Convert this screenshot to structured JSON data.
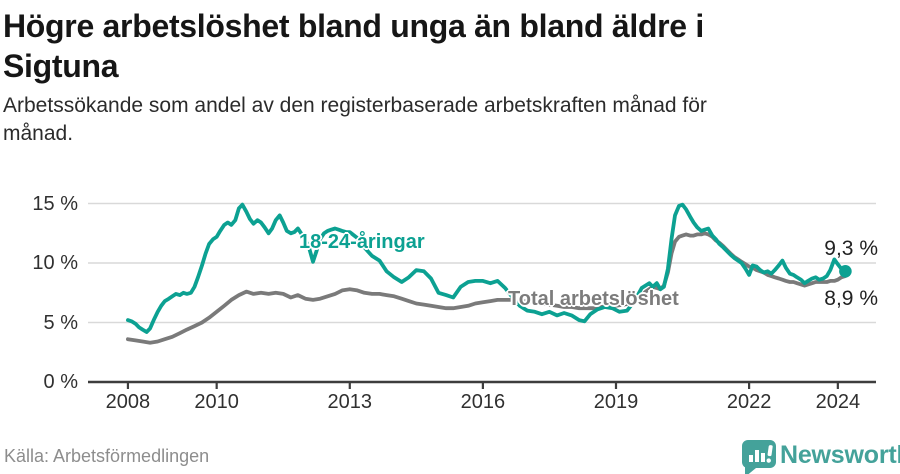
{
  "header": {
    "title_lines": [
      "Högre arbetslöshet bland unga än bland äldre i",
      "Sigtuna"
    ],
    "subtitle_lines": [
      "Arbetssökande som andel av den registerbaserade arbetskraften månad för",
      "månad."
    ]
  },
  "chart_data": {
    "type": "line",
    "title": "Högre arbetslöshet bland unga än bland äldre i Sigtuna",
    "subtitle": "Arbetssökande som andel av den registerbaserade arbetskraften månad för månad.",
    "x_unit": "decimal_year",
    "xlim": [
      2007.1,
      2024.86
    ],
    "ylim": [
      0,
      15
    ],
    "grid": "horizontal",
    "xticks": [
      2008,
      2010,
      2013,
      2016,
      2019,
      2022,
      2024
    ],
    "xtick_labels": [
      "2008",
      "2010",
      "2013",
      "2016",
      "2019",
      "2022",
      "2024"
    ],
    "yticks": [
      0,
      5,
      10,
      15
    ],
    "ytick_labels": [
      "0 %",
      "5 %",
      "10 %",
      "15 %"
    ],
    "series": [
      {
        "name": "Total arbetslöshet",
        "color": "#7a7a7a",
        "end_dot": false,
        "points": [
          [
            2008.0,
            3.6
          ],
          [
            2008.17,
            3.5
          ],
          [
            2008.33,
            3.4
          ],
          [
            2008.5,
            3.3
          ],
          [
            2008.67,
            3.4
          ],
          [
            2008.83,
            3.6
          ],
          [
            2009.0,
            3.8
          ],
          [
            2009.17,
            4.1
          ],
          [
            2009.33,
            4.4
          ],
          [
            2009.5,
            4.7
          ],
          [
            2009.67,
            5.0
          ],
          [
            2009.83,
            5.4
          ],
          [
            2010.0,
            5.9
          ],
          [
            2010.17,
            6.4
          ],
          [
            2010.33,
            6.9
          ],
          [
            2010.5,
            7.3
          ],
          [
            2010.67,
            7.6
          ],
          [
            2010.83,
            7.4
          ],
          [
            2011.0,
            7.5
          ],
          [
            2011.17,
            7.4
          ],
          [
            2011.33,
            7.5
          ],
          [
            2011.5,
            7.4
          ],
          [
            2011.67,
            7.1
          ],
          [
            2011.83,
            7.3
          ],
          [
            2012.0,
            7.0
          ],
          [
            2012.17,
            6.9
          ],
          [
            2012.33,
            7.0
          ],
          [
            2012.5,
            7.2
          ],
          [
            2012.67,
            7.4
          ],
          [
            2012.83,
            7.7
          ],
          [
            2013.0,
            7.8
          ],
          [
            2013.17,
            7.7
          ],
          [
            2013.33,
            7.5
          ],
          [
            2013.5,
            7.4
          ],
          [
            2013.67,
            7.4
          ],
          [
            2013.83,
            7.3
          ],
          [
            2014.0,
            7.2
          ],
          [
            2014.17,
            7.0
          ],
          [
            2014.33,
            6.8
          ],
          [
            2014.5,
            6.6
          ],
          [
            2014.67,
            6.5
          ],
          [
            2014.83,
            6.4
          ],
          [
            2015.0,
            6.3
          ],
          [
            2015.17,
            6.2
          ],
          [
            2015.33,
            6.2
          ],
          [
            2015.5,
            6.3
          ],
          [
            2015.67,
            6.4
          ],
          [
            2015.83,
            6.6
          ],
          [
            2016.0,
            6.7
          ],
          [
            2016.17,
            6.8
          ],
          [
            2016.33,
            6.9
          ],
          [
            2016.5,
            6.9
          ],
          [
            2016.67,
            6.9
          ],
          [
            2016.83,
            6.8
          ],
          [
            2017.0,
            6.8
          ],
          [
            2017.17,
            6.7
          ],
          [
            2017.33,
            6.6
          ],
          [
            2017.5,
            6.5
          ],
          [
            2017.67,
            6.4
          ],
          [
            2017.83,
            6.3
          ],
          [
            2018.0,
            6.3
          ],
          [
            2018.17,
            6.2
          ],
          [
            2018.33,
            6.2
          ],
          [
            2018.5,
            6.2
          ],
          [
            2018.67,
            6.3
          ],
          [
            2018.83,
            6.4
          ],
          [
            2019.0,
            6.4
          ],
          [
            2019.17,
            6.5
          ],
          [
            2019.33,
            6.6
          ],
          [
            2019.5,
            7.0
          ],
          [
            2019.67,
            7.6
          ],
          [
            2019.83,
            8.0
          ],
          [
            2019.92,
            7.9
          ],
          [
            2020.0,
            7.8
          ],
          [
            2020.08,
            8.1
          ],
          [
            2020.17,
            9.2
          ],
          [
            2020.25,
            10.8
          ],
          [
            2020.33,
            11.8
          ],
          [
            2020.42,
            12.2
          ],
          [
            2020.5,
            12.3
          ],
          [
            2020.58,
            12.4
          ],
          [
            2020.67,
            12.3
          ],
          [
            2020.75,
            12.3
          ],
          [
            2020.83,
            12.4
          ],
          [
            2020.92,
            12.4
          ],
          [
            2021.0,
            12.5
          ],
          [
            2021.08,
            12.4
          ],
          [
            2021.17,
            12.2
          ],
          [
            2021.25,
            11.9
          ],
          [
            2021.33,
            11.7
          ],
          [
            2021.42,
            11.4
          ],
          [
            2021.5,
            11.1
          ],
          [
            2021.58,
            10.8
          ],
          [
            2021.67,
            10.5
          ],
          [
            2021.75,
            10.3
          ],
          [
            2021.83,
            10.1
          ],
          [
            2021.92,
            9.9
          ],
          [
            2022.0,
            9.7
          ],
          [
            2022.08,
            9.6
          ],
          [
            2022.17,
            9.4
          ],
          [
            2022.25,
            9.3
          ],
          [
            2022.33,
            9.2
          ],
          [
            2022.42,
            9.0
          ],
          [
            2022.5,
            8.9
          ],
          [
            2022.58,
            8.8
          ],
          [
            2022.67,
            8.7
          ],
          [
            2022.75,
            8.6
          ],
          [
            2022.83,
            8.5
          ],
          [
            2022.92,
            8.4
          ],
          [
            2023.0,
            8.4
          ],
          [
            2023.08,
            8.3
          ],
          [
            2023.17,
            8.2
          ],
          [
            2023.25,
            8.1
          ],
          [
            2023.33,
            8.2
          ],
          [
            2023.42,
            8.3
          ],
          [
            2023.5,
            8.4
          ],
          [
            2023.58,
            8.4
          ],
          [
            2023.67,
            8.4
          ],
          [
            2023.75,
            8.4
          ],
          [
            2023.83,
            8.5
          ],
          [
            2023.92,
            8.5
          ],
          [
            2024.0,
            8.6
          ],
          [
            2024.08,
            8.8
          ],
          [
            2024.17,
            8.9
          ]
        ]
      },
      {
        "name": "18-24-åringar",
        "color": "#0ca192",
        "end_dot": true,
        "points": [
          [
            2008.0,
            5.2
          ],
          [
            2008.08,
            5.1
          ],
          [
            2008.17,
            4.9
          ],
          [
            2008.25,
            4.6
          ],
          [
            2008.33,
            4.4
          ],
          [
            2008.42,
            4.2
          ],
          [
            2008.5,
            4.5
          ],
          [
            2008.58,
            5.2
          ],
          [
            2008.67,
            5.9
          ],
          [
            2008.75,
            6.4
          ],
          [
            2008.83,
            6.8
          ],
          [
            2008.92,
            7.0
          ],
          [
            2009.0,
            7.2
          ],
          [
            2009.08,
            7.4
          ],
          [
            2009.17,
            7.3
          ],
          [
            2009.25,
            7.5
          ],
          [
            2009.33,
            7.4
          ],
          [
            2009.42,
            7.5
          ],
          [
            2009.5,
            8.0
          ],
          [
            2009.58,
            8.8
          ],
          [
            2009.67,
            9.8
          ],
          [
            2009.75,
            10.8
          ],
          [
            2009.83,
            11.6
          ],
          [
            2009.92,
            12.0
          ],
          [
            2010.0,
            12.2
          ],
          [
            2010.08,
            12.7
          ],
          [
            2010.17,
            13.2
          ],
          [
            2010.25,
            13.4
          ],
          [
            2010.33,
            13.2
          ],
          [
            2010.42,
            13.6
          ],
          [
            2010.5,
            14.6
          ],
          [
            2010.58,
            14.9
          ],
          [
            2010.67,
            14.3
          ],
          [
            2010.75,
            13.7
          ],
          [
            2010.83,
            13.3
          ],
          [
            2010.92,
            13.6
          ],
          [
            2011.0,
            13.4
          ],
          [
            2011.08,
            13.0
          ],
          [
            2011.17,
            12.5
          ],
          [
            2011.25,
            12.9
          ],
          [
            2011.33,
            13.6
          ],
          [
            2011.42,
            14.0
          ],
          [
            2011.5,
            13.4
          ],
          [
            2011.58,
            12.7
          ],
          [
            2011.67,
            12.5
          ],
          [
            2011.75,
            12.6
          ],
          [
            2011.83,
            12.9
          ],
          [
            2011.92,
            12.4
          ],
          [
            2012.0,
            12.0
          ],
          [
            2012.08,
            11.3
          ],
          [
            2012.17,
            10.1
          ],
          [
            2012.25,
            11.0
          ],
          [
            2012.33,
            12.0
          ],
          [
            2012.42,
            12.5
          ],
          [
            2012.5,
            12.7
          ],
          [
            2012.58,
            12.8
          ],
          [
            2012.67,
            12.9
          ],
          [
            2012.75,
            12.8
          ],
          [
            2012.83,
            12.7
          ],
          [
            2012.92,
            12.6
          ],
          [
            2013.0,
            12.6
          ],
          [
            2013.17,
            12.1
          ],
          [
            2013.33,
            11.3
          ],
          [
            2013.5,
            10.6
          ],
          [
            2013.67,
            10.2
          ],
          [
            2013.83,
            9.3
          ],
          [
            2014.0,
            8.8
          ],
          [
            2014.17,
            8.4
          ],
          [
            2014.33,
            8.8
          ],
          [
            2014.5,
            9.4
          ],
          [
            2014.67,
            9.3
          ],
          [
            2014.83,
            8.7
          ],
          [
            2015.0,
            7.5
          ],
          [
            2015.17,
            7.3
          ],
          [
            2015.33,
            7.1
          ],
          [
            2015.5,
            8.0
          ],
          [
            2015.67,
            8.4
          ],
          [
            2015.83,
            8.5
          ],
          [
            2016.0,
            8.5
          ],
          [
            2016.17,
            8.3
          ],
          [
            2016.33,
            8.5
          ],
          [
            2016.5,
            7.9
          ],
          [
            2016.67,
            7.1
          ],
          [
            2016.83,
            6.4
          ],
          [
            2017.0,
            6.0
          ],
          [
            2017.17,
            5.9
          ],
          [
            2017.33,
            5.7
          ],
          [
            2017.5,
            5.9
          ],
          [
            2017.67,
            5.6
          ],
          [
            2017.83,
            5.8
          ],
          [
            2018.0,
            5.6
          ],
          [
            2018.17,
            5.2
          ],
          [
            2018.29,
            5.1
          ],
          [
            2018.42,
            5.7
          ],
          [
            2018.58,
            6.1
          ],
          [
            2018.75,
            6.3
          ],
          [
            2018.92,
            6.2
          ],
          [
            2019.08,
            5.9
          ],
          [
            2019.25,
            6.0
          ],
          [
            2019.42,
            6.8
          ],
          [
            2019.58,
            7.9
          ],
          [
            2019.75,
            8.3
          ],
          [
            2019.83,
            8.0
          ],
          [
            2019.92,
            8.3
          ],
          [
            2020.0,
            7.8
          ],
          [
            2020.08,
            8.0
          ],
          [
            2020.17,
            9.5
          ],
          [
            2020.25,
            12.0
          ],
          [
            2020.33,
            14.0
          ],
          [
            2020.42,
            14.8
          ],
          [
            2020.5,
            14.9
          ],
          [
            2020.58,
            14.5
          ],
          [
            2020.67,
            13.9
          ],
          [
            2020.75,
            13.4
          ],
          [
            2020.83,
            13.0
          ],
          [
            2020.92,
            12.7
          ],
          [
            2021.0,
            12.8
          ],
          [
            2021.08,
            12.9
          ],
          [
            2021.17,
            12.3
          ],
          [
            2021.25,
            12.0
          ],
          [
            2021.33,
            11.6
          ],
          [
            2021.42,
            11.3
          ],
          [
            2021.5,
            11.0
          ],
          [
            2021.58,
            10.7
          ],
          [
            2021.67,
            10.4
          ],
          [
            2021.75,
            10.2
          ],
          [
            2021.83,
            10.0
          ],
          [
            2021.92,
            9.5
          ],
          [
            2022.0,
            9.0
          ],
          [
            2022.08,
            9.8
          ],
          [
            2022.17,
            9.7
          ],
          [
            2022.25,
            9.4
          ],
          [
            2022.33,
            9.2
          ],
          [
            2022.42,
            9.3
          ],
          [
            2022.5,
            9.1
          ],
          [
            2022.58,
            9.4
          ],
          [
            2022.67,
            9.8
          ],
          [
            2022.75,
            10.2
          ],
          [
            2022.83,
            9.6
          ],
          [
            2022.92,
            9.1
          ],
          [
            2023.0,
            9.0
          ],
          [
            2023.08,
            8.8
          ],
          [
            2023.17,
            8.6
          ],
          [
            2023.25,
            8.3
          ],
          [
            2023.33,
            8.5
          ],
          [
            2023.42,
            8.7
          ],
          [
            2023.5,
            8.8
          ],
          [
            2023.58,
            8.6
          ],
          [
            2023.67,
            8.7
          ],
          [
            2023.75,
            8.9
          ],
          [
            2023.83,
            9.4
          ],
          [
            2023.92,
            10.3
          ],
          [
            2024.0,
            9.9
          ],
          [
            2024.08,
            9.5
          ],
          [
            2024.17,
            9.3
          ]
        ]
      }
    ],
    "annotations": {
      "series_label_youth": "18-24-åringar",
      "series_label_total": "Total arbetslöshet",
      "end_label_youth": "9,3 %",
      "end_label_total": "8,9 %"
    },
    "legend_position": "inline-labels"
  },
  "footer": {
    "source": "Källa: Arbetsförmedlingen",
    "brand": "Newsworthy"
  },
  "colors": {
    "youth_line": "#0ca192",
    "total_line": "#7a7a7a",
    "brand_teal": "#44a29a",
    "grid": "#d9d9d9",
    "axis": "#3d3d3d",
    "title_text": "#161616",
    "source_text": "#8d8d8d"
  }
}
